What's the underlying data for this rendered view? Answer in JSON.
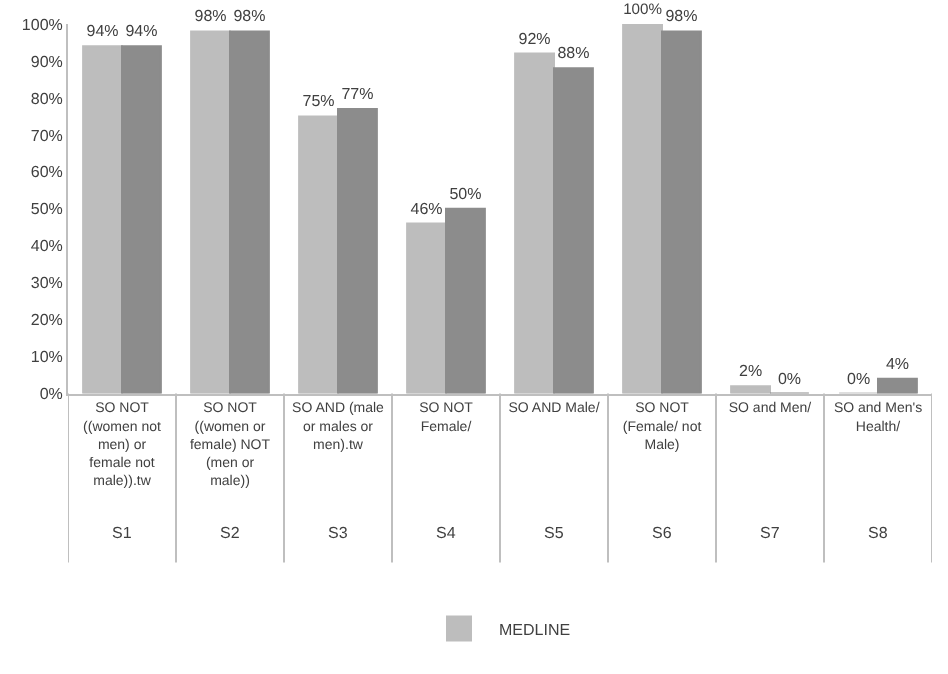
{
  "chart_data": {
    "type": "bar",
    "categories": [
      "SO NOT ((women not men) or female not male)).tw",
      "SO NOT ((women or female) NOT (men or male))",
      "SO AND (male or males or men).tw",
      "SO NOT Female/",
      "SO AND Male/",
      "SO NOT (Female/ not Male)",
      "SO and Men/",
      "SO and Men's Health/"
    ],
    "series": [
      {
        "name": "MEDLINE",
        "color": "#bdbdbd",
        "values": [
          94,
          98,
          75,
          46,
          92,
          100,
          2,
          0
        ],
        "value_labels": [
          "94%",
          "98%",
          "75%",
          "46%",
          "92%",
          "100%",
          "2%",
          "0%"
        ]
      },
      {
        "color": "#8c8c8c",
        "values": [
          94,
          98,
          77,
          50,
          88,
          98,
          0,
          4
        ],
        "value_labels": [
          "94%",
          "98%",
          "77%",
          "50%",
          "88%",
          "98%",
          "0%",
          "4%"
        ]
      }
    ],
    "ylim": [
      0,
      100
    ],
    "yticks": [
      {
        "value": 0,
        "label": "0%"
      },
      {
        "value": 10,
        "label": "10%"
      },
      {
        "value": 20,
        "label": "20%"
      },
      {
        "value": 30,
        "label": "30%"
      },
      {
        "value": 40,
        "label": "40%"
      },
      {
        "value": 50,
        "label": "50%"
      },
      {
        "value": 60,
        "label": "60%"
      },
      {
        "value": 70,
        "label": "70%"
      },
      {
        "value": 80,
        "label": "80%"
      },
      {
        "value": 90,
        "label": "90%"
      },
      {
        "value": 100,
        "label": "100%"
      }
    ],
    "grid": false,
    "legend": "bottom",
    "annotations": [
      "S1",
      "S2",
      "S3",
      "S4",
      "S5",
      "S6",
      "S7",
      "S8"
    ]
  }
}
